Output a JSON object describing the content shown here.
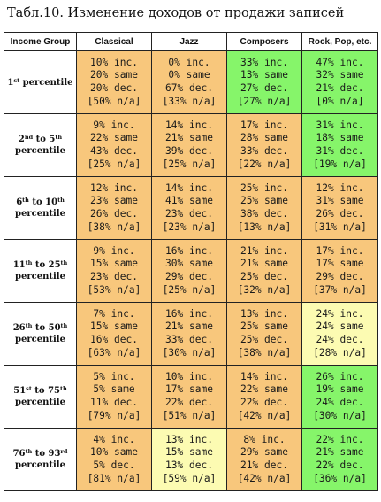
{
  "title": "Табл.10. Изменение доходов от продажи записей",
  "headers": [
    "Income Group",
    "Classical",
    "Jazz",
    "Composers",
    "Rock, Pop, etc."
  ],
  "colors": {
    "orange": "#f8c77c",
    "green": "#86f56a",
    "light_yellow": "#fcfbb2"
  },
  "rows": [
    {
      "label": {
        "a": "1",
        "a_sup": "st",
        "mid": " percentile",
        "b": "",
        "b_sup": "",
        "tail": ""
      },
      "cells": [
        {
          "color": "orange",
          "inc": "10% inc.",
          "same": "20% same",
          "dec": "20% dec.",
          "na": "[50% n/a]"
        },
        {
          "color": "orange",
          "inc": "0% inc.",
          "same": "0% same",
          "dec": "67% dec.",
          "na": "[33% n/a]"
        },
        {
          "color": "green",
          "inc": "33% inc.",
          "same": "13% same",
          "dec": "27% dec.",
          "na": "[27% n/a]"
        },
        {
          "color": "green",
          "inc": "47% inc.",
          "same": "32% same",
          "dec": "21% dec.",
          "na": "[0% n/a]"
        }
      ]
    },
    {
      "label": {
        "a": "2",
        "a_sup": "nd",
        "mid": " to ",
        "b": "5",
        "b_sup": "th",
        "tail": "percentile"
      },
      "cells": [
        {
          "color": "orange",
          "inc": "9% inc.",
          "same": "22% same",
          "dec": "43% dec.",
          "na": "[25% n/a]"
        },
        {
          "color": "orange",
          "inc": "14% inc.",
          "same": "21% same",
          "dec": "39% dec.",
          "na": "[25% n/a]"
        },
        {
          "color": "orange",
          "inc": "17% inc.",
          "same": "28% same",
          "dec": "33% dec.",
          "na": "[22% n/a]"
        },
        {
          "color": "green",
          "inc": "31% inc.",
          "same": "18% same",
          "dec": "31% dec.",
          "na": "[19% n/a]"
        }
      ]
    },
    {
      "label": {
        "a": "6",
        "a_sup": "th",
        "mid": " to ",
        "b": "10",
        "b_sup": "th",
        "tail": "percentile"
      },
      "cells": [
        {
          "color": "orange",
          "inc": "12% inc.",
          "same": "23% same",
          "dec": "26% dec.",
          "na": "[38% n/a]"
        },
        {
          "color": "orange",
          "inc": "14% inc.",
          "same": "41% same",
          "dec": "23% dec.",
          "na": "[23% n/a]"
        },
        {
          "color": "orange",
          "inc": "25% inc.",
          "same": "25% same",
          "dec": "38% dec.",
          "na": "[13% n/a]"
        },
        {
          "color": "orange",
          "inc": "12% inc.",
          "same": "31% same",
          "dec": "26% dec.",
          "na": "[31% n/a]"
        }
      ]
    },
    {
      "label": {
        "a": "11",
        "a_sup": "th",
        "mid": " to ",
        "b": "25",
        "b_sup": "th",
        "tail": "percentile"
      },
      "cells": [
        {
          "color": "orange",
          "inc": "9% inc.",
          "same": "15% same",
          "dec": "23% dec.",
          "na": "[53% n/a]"
        },
        {
          "color": "orange",
          "inc": "16% inc.",
          "same": "30% same",
          "dec": "29% dec.",
          "na": "[25% n/a]"
        },
        {
          "color": "orange",
          "inc": "21% inc.",
          "same": "21% same",
          "dec": "25% dec.",
          "na": "[32% n/a]"
        },
        {
          "color": "orange",
          "inc": "17% inc.",
          "same": "17% same",
          "dec": "29% dec.",
          "na": "[37% n/a]"
        }
      ]
    },
    {
      "label": {
        "a": "26",
        "a_sup": "th",
        "mid": " to ",
        "b": "50",
        "b_sup": "th",
        "tail": "percentile"
      },
      "cells": [
        {
          "color": "orange",
          "inc": "7% inc.",
          "same": "15% same",
          "dec": "16% dec.",
          "na": "[63% n/a]"
        },
        {
          "color": "orange",
          "inc": "16% inc.",
          "same": "21% same",
          "dec": "33% dec.",
          "na": "[30% n/a]"
        },
        {
          "color": "orange",
          "inc": "13% inc.",
          "same": "25% same",
          "dec": "25% dec.",
          "na": "[38% n/a]"
        },
        {
          "color": "light_yellow",
          "inc": "24% inc.",
          "same": "24% same",
          "dec": "24% dec.",
          "na": "[28% n/a]"
        }
      ]
    },
    {
      "label": {
        "a": "51",
        "a_sup": "st",
        "mid": " to ",
        "b": "75",
        "b_sup": "th",
        "tail": "percentile"
      },
      "cells": [
        {
          "color": "orange",
          "inc": "5% inc.",
          "same": "5% same",
          "dec": "11% dec.",
          "na": "[79% n/a]"
        },
        {
          "color": "orange",
          "inc": "10% inc.",
          "same": "17% same",
          "dec": "22% dec.",
          "na": "[51% n/a]"
        },
        {
          "color": "orange",
          "inc": "14% inc.",
          "same": "22% same",
          "dec": "22% dec.",
          "na": "[42% n/a]"
        },
        {
          "color": "green",
          "inc": "26% inc.",
          "same": "19% same",
          "dec": "24% dec.",
          "na": "[30% n/a]"
        }
      ]
    },
    {
      "label": {
        "a": "76",
        "a_sup": "th",
        "mid": " to ",
        "b": "93",
        "b_sup": "rd",
        "tail": "percentile"
      },
      "cells": [
        {
          "color": "orange",
          "inc": "4% inc.",
          "same": "10% same",
          "dec": "5% dec.",
          "na": "[81% n/a]"
        },
        {
          "color": "light_yellow",
          "inc": "13% inc.",
          "same": "15% same",
          "dec": "13% dec.",
          "na": "[59% n/a]"
        },
        {
          "color": "orange",
          "inc": "8% inc.",
          "same": "29% same",
          "dec": "21% dec.",
          "na": "[42% n/a]"
        },
        {
          "color": "green",
          "inc": "22% inc.",
          "same": "21% same",
          "dec": "22% dec.",
          "na": "[36% n/a]"
        }
      ]
    }
  ]
}
